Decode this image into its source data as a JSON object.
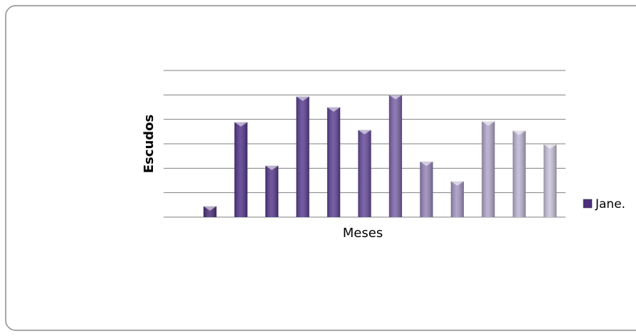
{
  "chart_data": {
    "type": "bar",
    "x_label": "Meses",
    "y_label": "Escudos",
    "categories": [
      null,
      null,
      null,
      null,
      null,
      null,
      null,
      null,
      null,
      null,
      null,
      null,
      null
    ],
    "series": [
      {
        "name": "Jane.",
        "color": "#4b2f7a",
        "values": [
          null,
          0.44,
          3.88,
          2.1,
          4.93,
          4.49,
          3.56,
          4.99,
          2.27,
          1.46,
          3.91,
          3.53,
          2.97
        ],
        "colors": [
          null,
          "#4b2f7a",
          "#52358a",
          "#563a8d",
          "#5a3e91",
          "#5e4394",
          "#654c99",
          "#7a63a8",
          "#9585b9",
          "#a396c2",
          "#b1a7cb",
          "#bdb5d3",
          "#c9c3db"
        ]
      }
    ],
    "ylim": [
      0,
      6
    ],
    "yticks": [
      0,
      1,
      2,
      3,
      4,
      5,
      6
    ],
    "grid": true
  }
}
